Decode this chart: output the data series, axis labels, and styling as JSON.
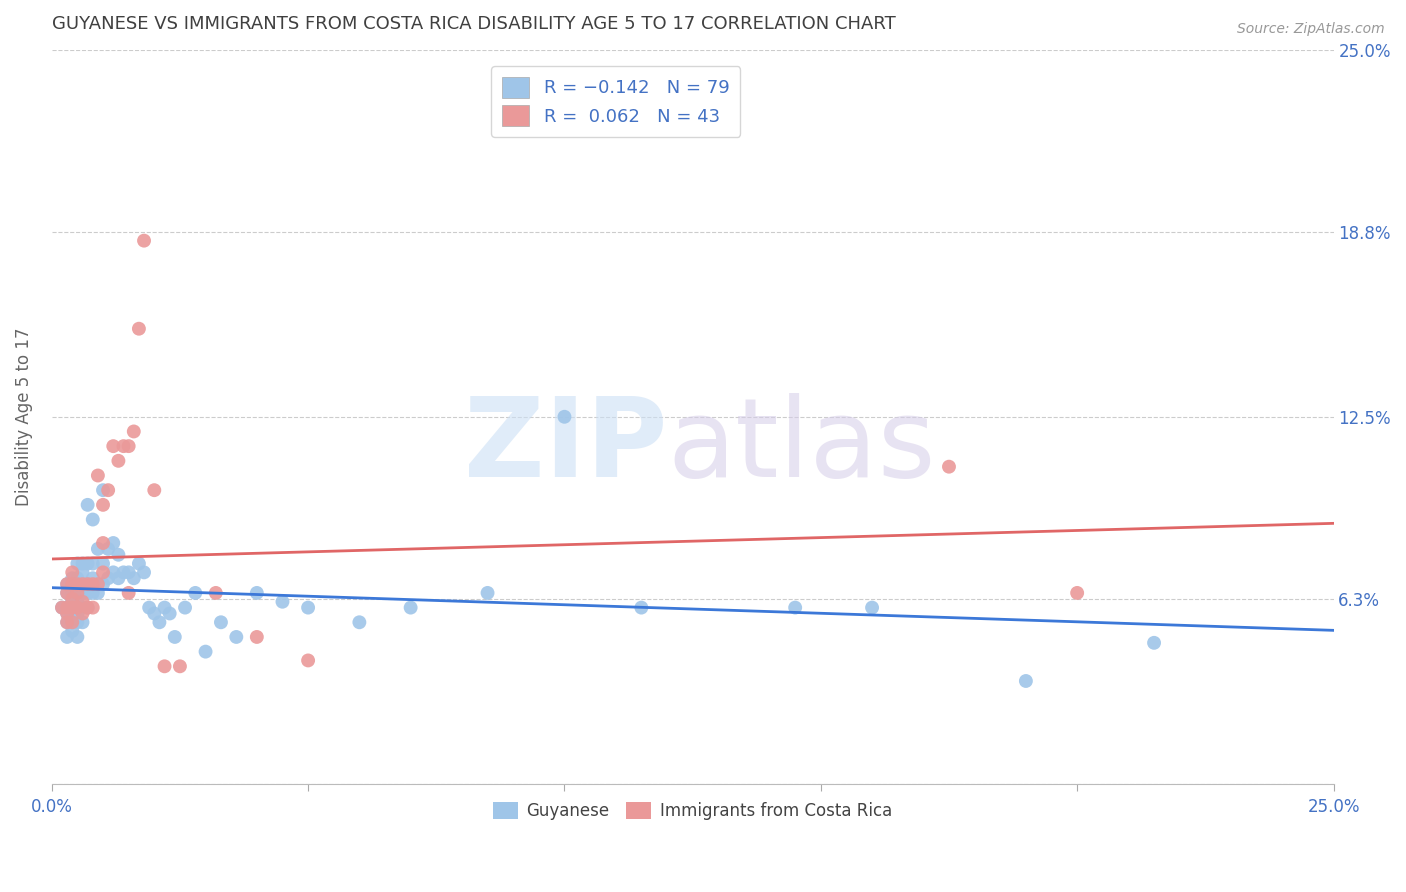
{
  "title": "GUYANESE VS IMMIGRANTS FROM COSTA RICA DISABILITY AGE 5 TO 17 CORRELATION CHART",
  "source": "Source: ZipAtlas.com",
  "ylabel": "Disability Age 5 to 17",
  "xlim": [
    0.0,
    0.25
  ],
  "ylim": [
    0.0,
    0.25
  ],
  "yticks": [
    0.0,
    0.063,
    0.125,
    0.188,
    0.25
  ],
  "ytick_labels": [
    "",
    "6.3%",
    "12.5%",
    "18.8%",
    "25.0%"
  ],
  "xticks": [
    0.0,
    0.05,
    0.1,
    0.15,
    0.2,
    0.25
  ],
  "legend_r1": "R = -0.142   N = 79",
  "legend_r2": "R =  0.062   N = 43",
  "blue_color": "#9fc5e8",
  "pink_color": "#ea9999",
  "blue_line_color": "#3c78d8",
  "pink_line_color": "#e06666",
  "title_color": "#404040",
  "axis_label_color": "#4472c4",
  "background_color": "#ffffff",
  "guyanese_x": [
    0.002,
    0.003,
    0.003,
    0.003,
    0.003,
    0.003,
    0.003,
    0.004,
    0.004,
    0.004,
    0.004,
    0.004,
    0.004,
    0.004,
    0.004,
    0.005,
    0.005,
    0.005,
    0.005,
    0.005,
    0.005,
    0.005,
    0.005,
    0.005,
    0.005,
    0.006,
    0.006,
    0.006,
    0.006,
    0.006,
    0.006,
    0.007,
    0.007,
    0.007,
    0.007,
    0.007,
    0.008,
    0.008,
    0.008,
    0.008,
    0.009,
    0.009,
    0.01,
    0.01,
    0.01,
    0.011,
    0.011,
    0.012,
    0.012,
    0.013,
    0.013,
    0.014,
    0.015,
    0.016,
    0.017,
    0.018,
    0.019,
    0.02,
    0.021,
    0.022,
    0.023,
    0.024,
    0.026,
    0.028,
    0.03,
    0.033,
    0.036,
    0.04,
    0.045,
    0.05,
    0.06,
    0.07,
    0.085,
    0.1,
    0.115,
    0.145,
    0.16,
    0.19,
    0.215
  ],
  "guyanese_y": [
    0.06,
    0.065,
    0.068,
    0.058,
    0.055,
    0.05,
    0.06,
    0.06,
    0.062,
    0.063,
    0.065,
    0.068,
    0.07,
    0.055,
    0.052,
    0.055,
    0.058,
    0.06,
    0.062,
    0.065,
    0.068,
    0.07,
    0.075,
    0.058,
    0.05,
    0.055,
    0.06,
    0.065,
    0.068,
    0.072,
    0.075,
    0.06,
    0.065,
    0.068,
    0.075,
    0.095,
    0.065,
    0.07,
    0.075,
    0.09,
    0.065,
    0.08,
    0.068,
    0.075,
    0.1,
    0.07,
    0.08,
    0.072,
    0.082,
    0.07,
    0.078,
    0.072,
    0.072,
    0.07,
    0.075,
    0.072,
    0.06,
    0.058,
    0.055,
    0.06,
    0.058,
    0.05,
    0.06,
    0.065,
    0.045,
    0.055,
    0.05,
    0.065,
    0.062,
    0.06,
    0.055,
    0.06,
    0.065,
    0.125,
    0.06,
    0.06,
    0.06,
    0.035,
    0.048
  ],
  "costarica_x": [
    0.002,
    0.003,
    0.003,
    0.003,
    0.003,
    0.003,
    0.004,
    0.004,
    0.004,
    0.004,
    0.004,
    0.005,
    0.005,
    0.005,
    0.006,
    0.006,
    0.006,
    0.007,
    0.007,
    0.008,
    0.008,
    0.009,
    0.009,
    0.01,
    0.01,
    0.01,
    0.011,
    0.012,
    0.013,
    0.014,
    0.015,
    0.015,
    0.016,
    0.017,
    0.018,
    0.02,
    0.022,
    0.025,
    0.032,
    0.04,
    0.05,
    0.175,
    0.2
  ],
  "costarica_y": [
    0.06,
    0.058,
    0.06,
    0.065,
    0.055,
    0.068,
    0.055,
    0.06,
    0.063,
    0.068,
    0.072,
    0.06,
    0.065,
    0.068,
    0.058,
    0.062,
    0.068,
    0.06,
    0.068,
    0.06,
    0.068,
    0.068,
    0.105,
    0.072,
    0.082,
    0.095,
    0.1,
    0.115,
    0.11,
    0.115,
    0.065,
    0.115,
    0.12,
    0.155,
    0.185,
    0.1,
    0.04,
    0.04,
    0.065,
    0.05,
    0.042,
    0.108,
    0.065
  ]
}
